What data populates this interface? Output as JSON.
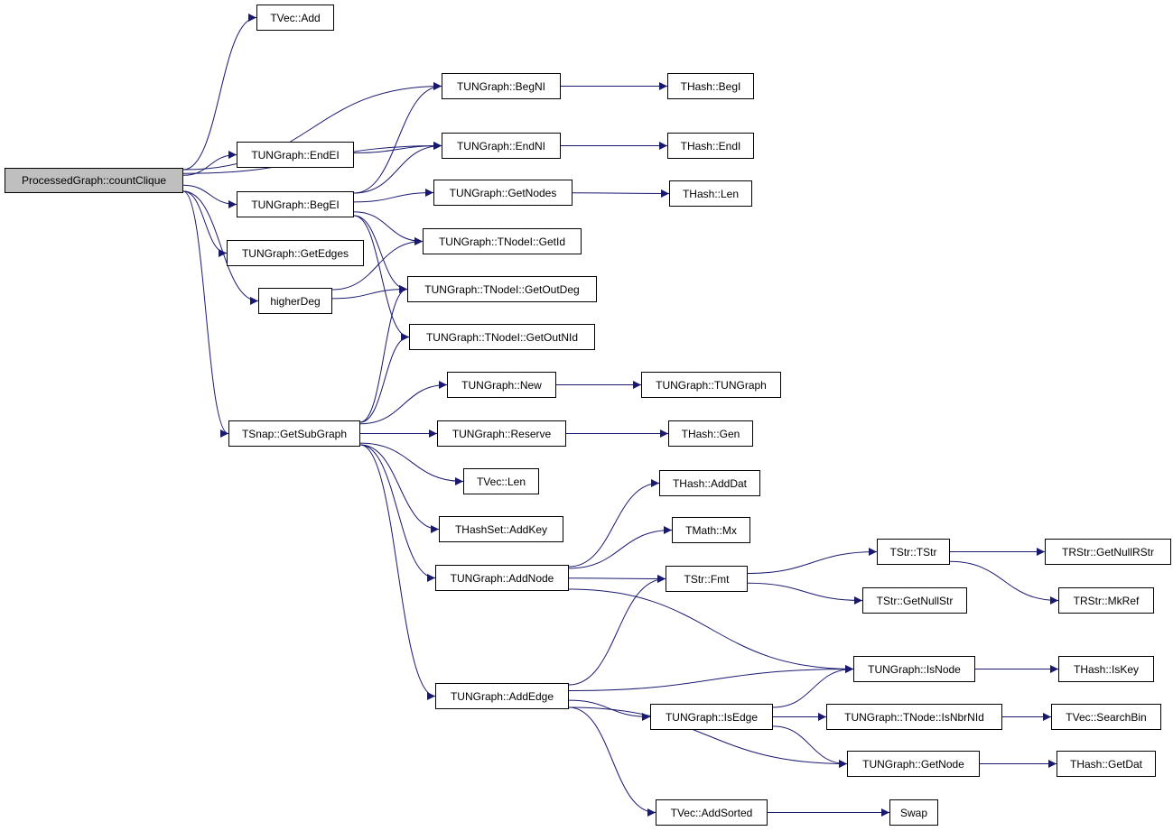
{
  "colors": {
    "edge": "#191970",
    "root_fill": "#bfbfbf",
    "node_fill": "#ffffff",
    "border": "#000000"
  },
  "root": "countClique",
  "nodes": {
    "countClique": "ProcessedGraph::countClique",
    "vecAdd": "TVec::Add",
    "begNI": "TUNGraph::BegNI",
    "endNI": "TUNGraph::EndNI",
    "endEI": "TUNGraph::EndEI",
    "begEI": "TUNGraph::BegEI",
    "getNodes": "TUNGraph::GetNodes",
    "getId": "TUNGraph::TNodeI::GetId",
    "getOutDeg": "TUNGraph::TNodeI::GetOutDeg",
    "getOutNId": "TUNGraph::TNodeI::GetOutNId",
    "getEdges": "TUNGraph::GetEdges",
    "higherDeg": "higherDeg",
    "newG": "TUNGraph::New",
    "ctor": "TUNGraph::TUNGraph",
    "hashBegI": "THash::BegI",
    "hashEndI": "THash::EndI",
    "hashLen": "THash::Len",
    "hashGen": "THash::Gen",
    "getSubGraph": "TSnap::GetSubGraph",
    "reserve": "TUNGraph::Reserve",
    "vecLen": "TVec::Len",
    "addKey": "THashSet::AddKey",
    "addNode": "TUNGraph::AddNode",
    "addEdge": "TUNGraph::AddEdge",
    "addDat": "THash::AddDat",
    "mx": "TMath::Mx",
    "fmt": "TStr::Fmt",
    "tstr": "TStr::TStr",
    "getNullStr": "TStr::GetNullStr",
    "getNullRStr": "TRStr::GetNullRStr",
    "mkRef": "TRStr::MkRef",
    "isNode": "TUNGraph::IsNode",
    "isKey": "THash::IsKey",
    "isEdge": "TUNGraph::IsEdge",
    "isNbrNId": "TUNGraph::TNode::IsNbrNId",
    "searchBin": "TVec::SearchBin",
    "getNode": "TUNGraph::GetNode",
    "getDat": "THash::GetDat",
    "addSorted": "TVec::AddSorted",
    "swap": "Swap"
  },
  "edges": [
    [
      "countClique",
      "vecAdd"
    ],
    [
      "countClique",
      "begNI"
    ],
    [
      "countClique",
      "endNI"
    ],
    [
      "countClique",
      "endEI"
    ],
    [
      "countClique",
      "begEI"
    ],
    [
      "countClique",
      "getEdges"
    ],
    [
      "countClique",
      "higherDeg"
    ],
    [
      "countClique",
      "getSubGraph"
    ],
    [
      "endEI",
      "endNI"
    ],
    [
      "begEI",
      "begNI"
    ],
    [
      "begEI",
      "endNI"
    ],
    [
      "begEI",
      "getNodes"
    ],
    [
      "begEI",
      "getId"
    ],
    [
      "begEI",
      "getOutDeg"
    ],
    [
      "begEI",
      "getOutNId"
    ],
    [
      "higherDeg",
      "getId"
    ],
    [
      "higherDeg",
      "getOutDeg"
    ],
    [
      "begNI",
      "hashBegI"
    ],
    [
      "endNI",
      "hashEndI"
    ],
    [
      "getNodes",
      "hashLen"
    ],
    [
      "newG",
      "ctor"
    ],
    [
      "reserve",
      "hashGen"
    ],
    [
      "getSubGraph",
      "getOutDeg"
    ],
    [
      "getSubGraph",
      "getOutNId"
    ],
    [
      "getSubGraph",
      "newG"
    ],
    [
      "getSubGraph",
      "reserve"
    ],
    [
      "getSubGraph",
      "vecLen"
    ],
    [
      "getSubGraph",
      "addKey"
    ],
    [
      "getSubGraph",
      "addNode"
    ],
    [
      "getSubGraph",
      "addEdge"
    ],
    [
      "addNode",
      "addDat"
    ],
    [
      "addNode",
      "mx"
    ],
    [
      "addNode",
      "fmt"
    ],
    [
      "addNode",
      "isNode"
    ],
    [
      "addEdge",
      "fmt"
    ],
    [
      "addEdge",
      "isNode"
    ],
    [
      "addEdge",
      "isEdge"
    ],
    [
      "addEdge",
      "getNode"
    ],
    [
      "addEdge",
      "addSorted"
    ],
    [
      "fmt",
      "tstr"
    ],
    [
      "fmt",
      "getNullStr"
    ],
    [
      "tstr",
      "getNullRStr"
    ],
    [
      "tstr",
      "mkRef"
    ],
    [
      "isNode",
      "isKey"
    ],
    [
      "isEdge",
      "isNode"
    ],
    [
      "isEdge",
      "isNbrNId"
    ],
    [
      "isEdge",
      "getNode"
    ],
    [
      "isNbrNId",
      "searchBin"
    ],
    [
      "getNode",
      "getDat"
    ],
    [
      "addSorted",
      "swap"
    ]
  ]
}
